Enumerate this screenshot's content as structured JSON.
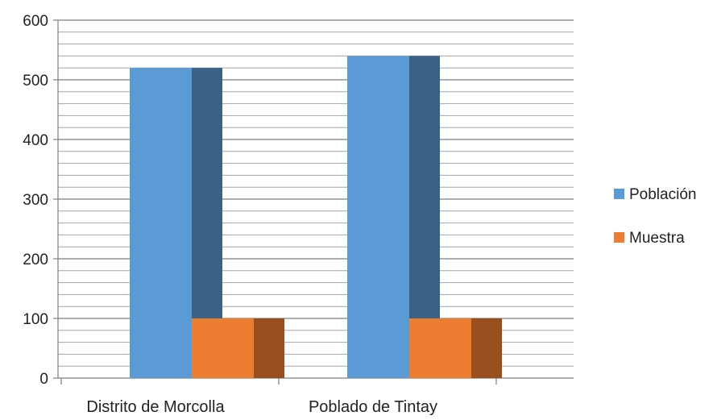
{
  "chart_data": {
    "type": "bar",
    "title": "",
    "xlabel": "",
    "ylabel": "",
    "categories": [
      "Distrito de Morcolla",
      "Poblado de Tintay"
    ],
    "series": [
      {
        "name": "Población",
        "values": [
          520,
          540
        ],
        "color": "#5B9BD5",
        "side_color": "#3A6286"
      },
      {
        "name": "Muestra",
        "values": [
          100,
          100
        ],
        "color": "#ED7D31",
        "side_color": "#9A4F1E"
      }
    ],
    "ylim": [
      0,
      600
    ],
    "yticks": [
      "0",
      "100",
      "200",
      "300",
      "400",
      "500",
      "600"
    ],
    "grid": true,
    "legend_position": "right",
    "style": "3d-column"
  }
}
